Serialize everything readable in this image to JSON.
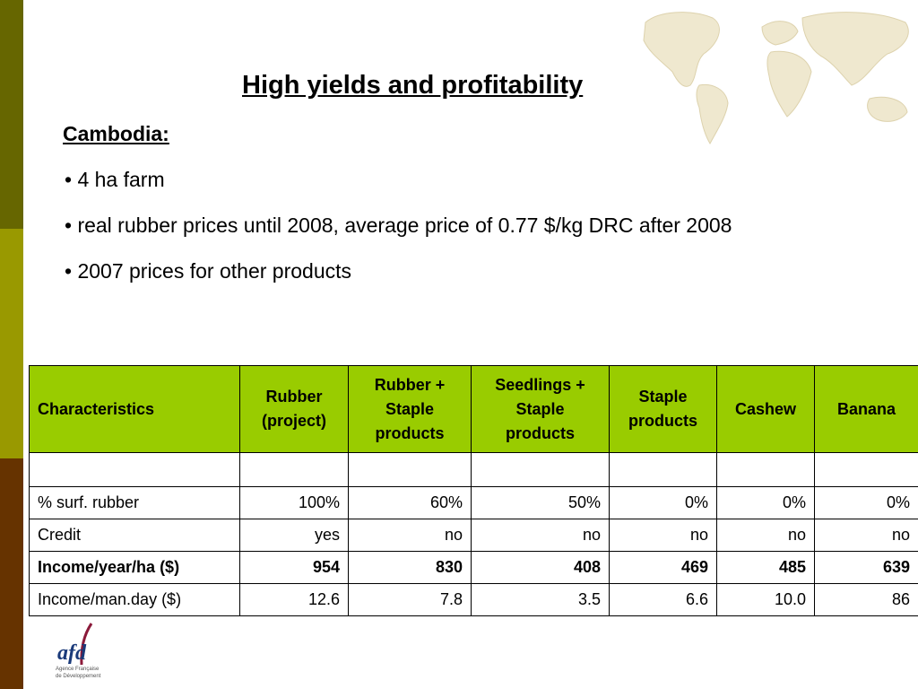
{
  "slide": {
    "title": "High yields and profitability",
    "subtitle": "Cambodia:",
    "bullets": [
      "• 4 ha farm",
      "• real rubber prices until 2008, average price of 0.77 $/kg DRC after 2008",
      "• 2007 prices for other products"
    ]
  },
  "table": {
    "headers": [
      "Characteristics",
      "Rubber (project)",
      "Rubber + Staple products",
      "Seedlings + Staple products",
      "Staple products",
      "Cashew",
      "Banana"
    ],
    "rows": [
      [
        "",
        "",
        "",
        "",
        "",
        "",
        ""
      ],
      [
        "% surf. rubber",
        "100%",
        "60%",
        "50%",
        "0%",
        "0%",
        "0%"
      ],
      [
        "Credit",
        "yes",
        "no",
        "no",
        "no",
        "no",
        "no"
      ],
      [
        "Income/year/ha ($)",
        "954",
        "830",
        "408",
        "469",
        "485",
        "639"
      ],
      [
        "Income/man.day ($)",
        "12.6",
        "7.8",
        "3.5",
        "6.6",
        "10.0",
        "86"
      ]
    ]
  },
  "logo": {
    "text": "afd",
    "caption_1": "Agence Française",
    "caption_2": "de Développement"
  },
  "colors": {
    "header_fill": "#99cc00",
    "sidebar_top": "#666600",
    "sidebar_mid": "#999900",
    "sidebar_bottom": "#663300"
  }
}
